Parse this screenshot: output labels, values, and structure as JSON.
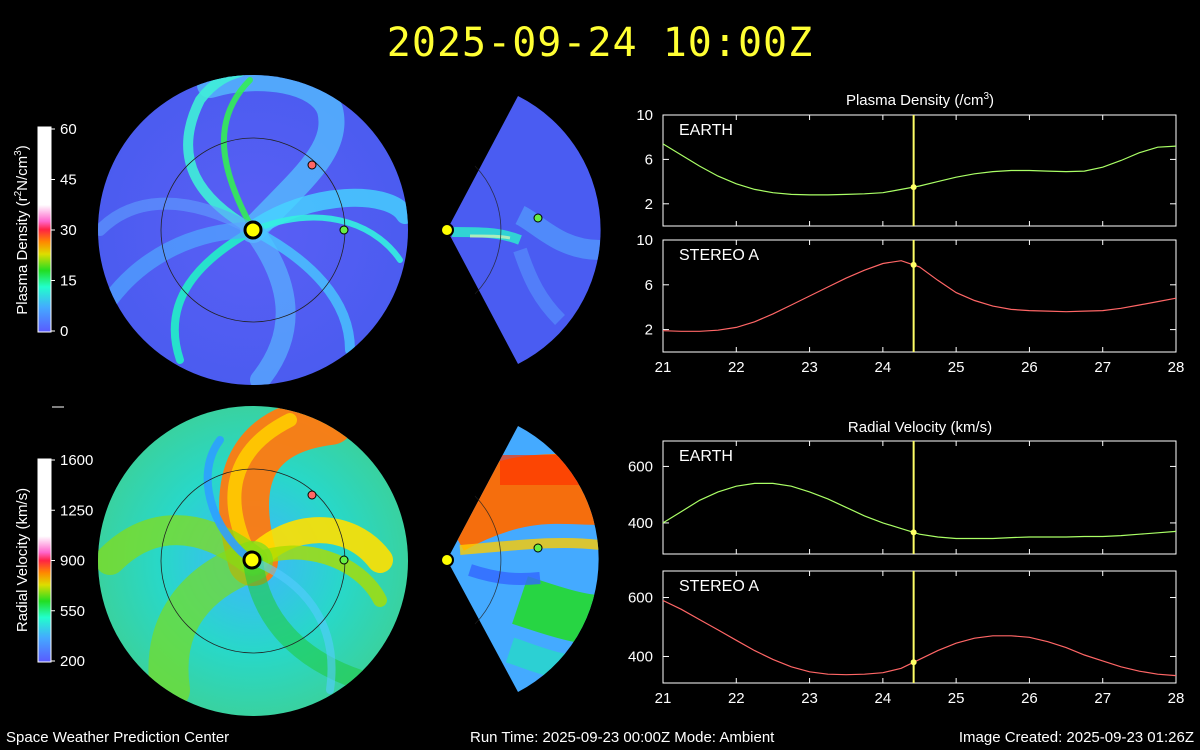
{
  "header": {
    "title": "2025-09-24 10:00Z"
  },
  "colors": {
    "background": "#000000",
    "title": "#ffff33",
    "earth": "#aaff66",
    "stereo_a": "#ff6666",
    "cursor": "#ffff66"
  },
  "density_scale": {
    "label": "Plasma Density (r²N/cm³)",
    "label_main": "Plasma Density (r",
    "label_sup1": "2",
    "label_mid": "N/cm",
    "label_sup2": "3",
    "label_end": ")",
    "ticks": [
      "60",
      "45",
      "30",
      "15",
      "0"
    ]
  },
  "velocity_scale": {
    "label": "Radial Velocity (km/s)",
    "ticks": [
      "1600",
      "1250",
      "900",
      "550",
      "200"
    ]
  },
  "footer": {
    "left": "Space Weather Prediction Center",
    "center": "Run Time: 2025-09-23 00:00Z  Mode: Ambient",
    "right": "Image Created: 2025-09-23 01:26Z"
  },
  "chart_data": [
    {
      "type": "line",
      "group_title": "Plasma Density (/cm³)",
      "title_main": "Plasma Density (/cm",
      "title_sup": "3",
      "title_end": ")",
      "panel_label": "EARTH",
      "series_color": "earth",
      "xlim": [
        21,
        28
      ],
      "ylim": [
        0,
        10
      ],
      "yticks": [
        2,
        6,
        10
      ],
      "xticks": [],
      "cursor_x": 24.42,
      "x": [
        21.0,
        21.25,
        21.5,
        21.75,
        22.0,
        22.25,
        22.5,
        22.75,
        23.0,
        23.25,
        23.5,
        23.75,
        24.0,
        24.25,
        24.5,
        24.75,
        25.0,
        25.25,
        25.5,
        25.75,
        26.0,
        26.25,
        26.5,
        26.75,
        27.0,
        27.25,
        27.5,
        27.75,
        28.0
      ],
      "y": [
        7.4,
        6.4,
        5.4,
        4.5,
        3.8,
        3.3,
        3.0,
        2.85,
        2.8,
        2.8,
        2.85,
        2.9,
        3.0,
        3.3,
        3.6,
        4.0,
        4.4,
        4.7,
        4.9,
        5.0,
        5.0,
        4.95,
        4.9,
        4.95,
        5.3,
        5.9,
        6.6,
        7.1,
        7.2
      ]
    },
    {
      "type": "line",
      "panel_label": "STEREO A",
      "series_color": "stereo_a",
      "xlim": [
        21,
        28
      ],
      "ylim": [
        0,
        10
      ],
      "yticks": [
        2,
        6,
        10
      ],
      "xticks": [
        21,
        22,
        23,
        24,
        25,
        26,
        27,
        28
      ],
      "cursor_x": 24.42,
      "x": [
        21.0,
        21.25,
        21.5,
        21.75,
        22.0,
        22.25,
        22.5,
        22.75,
        23.0,
        23.25,
        23.5,
        23.75,
        24.0,
        24.25,
        24.5,
        24.75,
        25.0,
        25.25,
        25.5,
        25.75,
        26.0,
        26.25,
        26.5,
        26.75,
        27.0,
        27.25,
        27.5,
        27.75,
        28.0
      ],
      "y": [
        1.9,
        1.85,
        1.85,
        1.95,
        2.2,
        2.7,
        3.4,
        4.2,
        5.0,
        5.8,
        6.6,
        7.3,
        7.9,
        8.15,
        7.6,
        6.4,
        5.3,
        4.6,
        4.1,
        3.8,
        3.7,
        3.65,
        3.6,
        3.65,
        3.7,
        3.9,
        4.2,
        4.5,
        4.8
      ]
    },
    {
      "type": "line",
      "group_title": "Radial Velocity (km/s)",
      "panel_label": "EARTH",
      "series_color": "earth",
      "xlim": [
        21,
        28
      ],
      "ylim": [
        290,
        690
      ],
      "yticks": [
        400,
        600
      ],
      "xticks": [],
      "cursor_x": 24.42,
      "x": [
        21.0,
        21.25,
        21.5,
        21.75,
        22.0,
        22.25,
        22.5,
        22.75,
        23.0,
        23.25,
        23.5,
        23.75,
        24.0,
        24.25,
        24.5,
        24.75,
        25.0,
        25.25,
        25.5,
        25.75,
        26.0,
        26.25,
        26.5,
        26.75,
        27.0,
        27.25,
        27.5,
        27.75,
        28.0
      ],
      "y": [
        400,
        440,
        480,
        510,
        530,
        540,
        540,
        530,
        510,
        485,
        455,
        425,
        400,
        380,
        360,
        350,
        345,
        345,
        345,
        348,
        350,
        350,
        350,
        352,
        352,
        355,
        360,
        365,
        370
      ]
    },
    {
      "type": "line",
      "panel_label": "STEREO A",
      "series_color": "stereo_a",
      "xlim": [
        21,
        28
      ],
      "ylim": [
        310,
        690
      ],
      "yticks": [
        400,
        600
      ],
      "xticks": [
        21,
        22,
        23,
        24,
        25,
        26,
        27,
        28
      ],
      "cursor_x": 24.42,
      "x": [
        21.0,
        21.25,
        21.5,
        21.75,
        22.0,
        22.25,
        22.5,
        22.75,
        23.0,
        23.25,
        23.5,
        23.75,
        24.0,
        24.25,
        24.5,
        24.75,
        25.0,
        25.25,
        25.5,
        25.75,
        26.0,
        26.25,
        26.5,
        26.75,
        27.0,
        27.25,
        27.5,
        27.75,
        28.0
      ],
      "y": [
        590,
        560,
        525,
        490,
        455,
        420,
        390,
        365,
        348,
        340,
        338,
        340,
        345,
        360,
        390,
        420,
        445,
        462,
        470,
        470,
        465,
        450,
        430,
        405,
        385,
        365,
        350,
        340,
        335
      ]
    }
  ]
}
